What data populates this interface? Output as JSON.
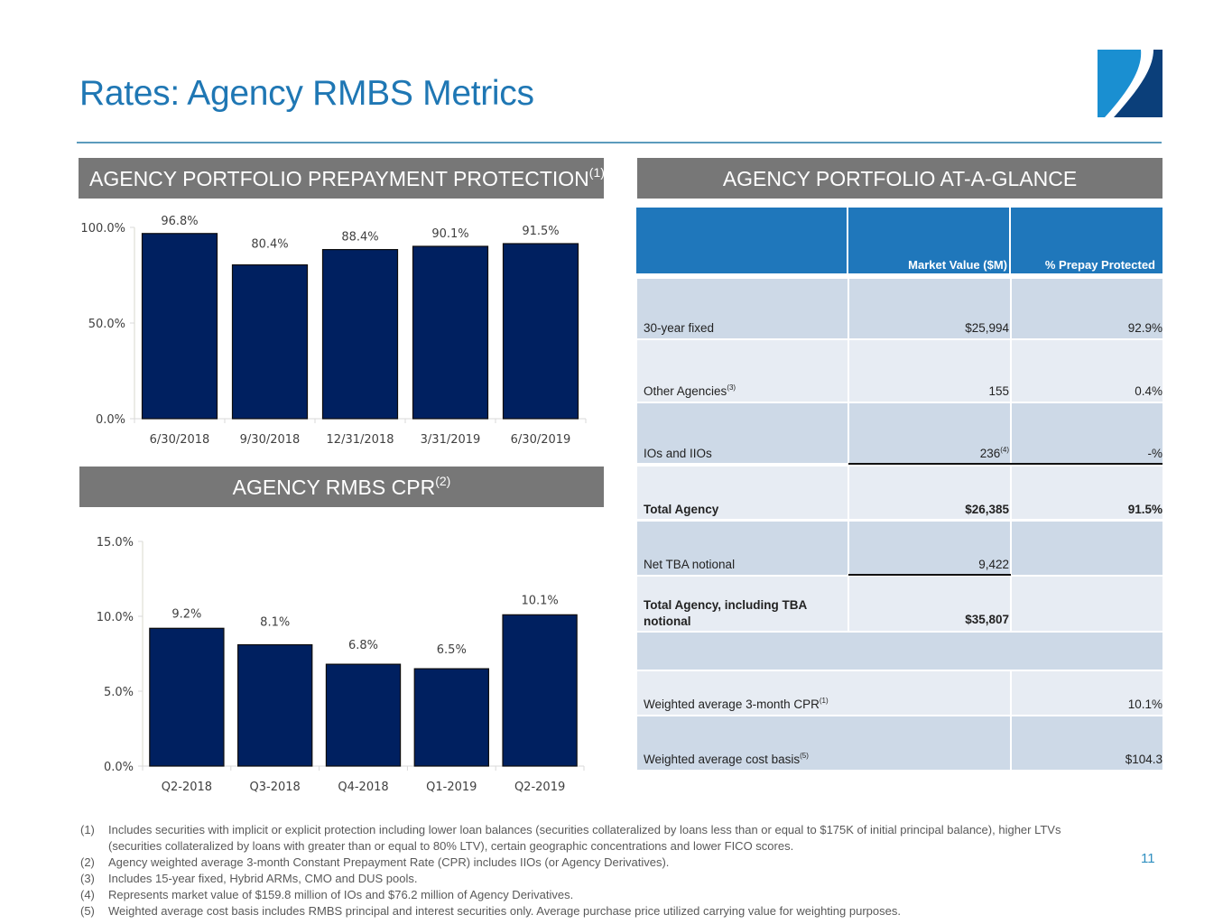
{
  "header": {
    "title": "Rates: Agency RMBS Metrics",
    "logo": "company-logo",
    "accent_color": "#1f77b4",
    "rule_color": "#5b9bbd"
  },
  "sections": {
    "prepay_title": "AGENCY PORTFOLIO PREPAYMENT PROTECTION",
    "prepay_note": "(1)",
    "glance_title": "AGENCY PORTFOLIO AT-A-GLANCE",
    "cpr_title": "AGENCY RMBS CPR",
    "cpr_note": "(2)"
  },
  "chart_data": [
    {
      "type": "bar",
      "title": "AGENCY PORTFOLIO PREPAYMENT PROTECTION(1)",
      "categories": [
        "6/30/2018",
        "9/30/2018",
        "12/31/2018",
        "3/31/2019",
        "6/30/2019"
      ],
      "values": [
        96.8,
        80.4,
        88.4,
        90.1,
        91.5
      ],
      "data_labels": [
        "96.8%",
        "80.4%",
        "88.4%",
        "90.1%",
        "91.5%"
      ],
      "yticks": [
        0,
        50,
        100
      ],
      "ytick_labels": [
        "0.0%",
        "50.0%",
        "100.0%"
      ],
      "ylim": [
        0,
        100
      ],
      "xlabel": "",
      "ylabel": "",
      "grid": false,
      "bar_color": "#002060"
    },
    {
      "type": "bar",
      "title": "AGENCY RMBS CPR(2)",
      "categories": [
        "Q2-2018",
        "Q3-2018",
        "Q4-2018",
        "Q1-2019",
        "Q2-2019"
      ],
      "values": [
        9.2,
        8.1,
        6.8,
        6.5,
        10.1
      ],
      "data_labels": [
        "9.2%",
        "8.1%",
        "6.8%",
        "6.5%",
        "10.1%"
      ],
      "yticks": [
        0,
        5,
        10,
        15
      ],
      "ytick_labels": [
        "0.0%",
        "5.0%",
        "10.0%",
        "15.0%"
      ],
      "ylim": [
        0,
        15
      ],
      "xlabel": "",
      "ylabel": "",
      "grid": false,
      "bar_color": "#002060"
    }
  ],
  "table": {
    "columns": [
      "",
      "Market Value ($M)",
      "% Prepay Protected"
    ],
    "rows": [
      {
        "label": "30-year fixed",
        "sup": "",
        "value": "$25,994",
        "value_sup": "",
        "pct": "92.9%"
      },
      {
        "label": "Other Agencies",
        "sup": "(3)",
        "value": "155",
        "value_sup": "",
        "pct": "0.4%"
      },
      {
        "label": "IOs and IIOs",
        "sup": "",
        "value": "236",
        "value_sup": "(4)",
        "pct": "-%"
      },
      {
        "label": "Total Agency",
        "sup": "",
        "value": "$26,385",
        "value_sup": "",
        "pct": "91.5%"
      },
      {
        "label": "Net TBA notional",
        "sup": "",
        "value": "9,422",
        "value_sup": "",
        "pct": ""
      },
      {
        "label_line1": "Total Agency, including TBA",
        "label_line2": "notional",
        "value": "$35,807",
        "pct": ""
      },
      {
        "label": "Weighted average 3-month CPR",
        "sup": "(1)",
        "pct": "10.1%"
      },
      {
        "label": "Weighted average cost basis",
        "sup": "(5)",
        "pct": "$104.3"
      }
    ]
  },
  "footnotes": [
    {
      "num": "(1)",
      "text": "Includes securities with implicit or explicit protection including lower loan balances (securities collateralized by loans less than or equal to $175K of initial principal balance), higher LTVs (securities collateralized by loans with greater than or equal to 80% LTV), certain geographic concentrations and lower FICO scores."
    },
    {
      "num": "(2)",
      "text": "Agency weighted average 3-month Constant Prepayment Rate (CPR) includes IIOs (or Agency Derivatives)."
    },
    {
      "num": "(3)",
      "text": "Includes 15-year fixed, Hybrid ARMs, CMO and DUS pools."
    },
    {
      "num": "(4)",
      "text": "Represents market value of $159.8 million of IOs and $76.2 million of Agency Derivatives."
    },
    {
      "num": "(5)",
      "text": "Weighted average cost basis includes RMBS principal and interest securities only.  Average purchase price utilized carrying value for weighting purposes."
    }
  ],
  "page_number": "11"
}
